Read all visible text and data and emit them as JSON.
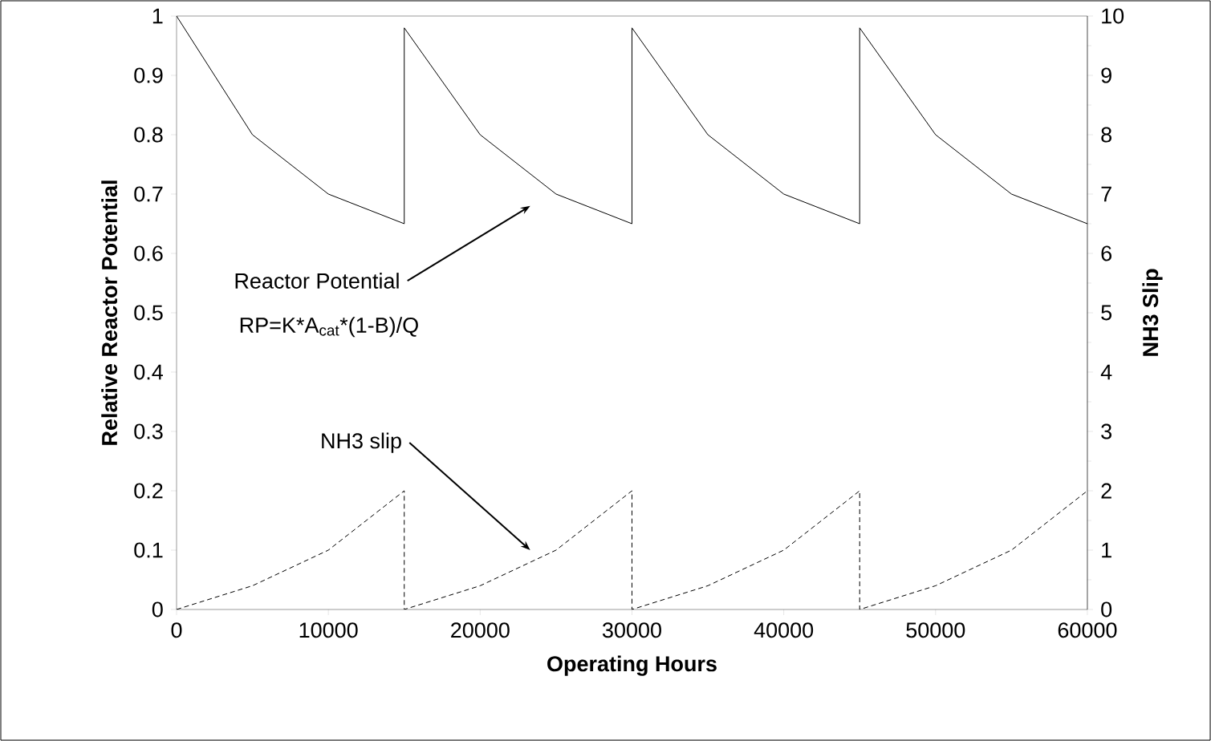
{
  "chart_data": {
    "type": "line",
    "xlabel": "Operating Hours",
    "ylabel": "Relative Reactor Potential",
    "y2label": "NH3 Slip",
    "x": [
      0,
      5000,
      10000,
      15000,
      15000,
      20000,
      25000,
      30000,
      30000,
      35000,
      40000,
      45000,
      45000,
      50000,
      55000,
      60000
    ],
    "series": [
      {
        "color": "#000000",
        "line_style": "solid",
        "values": [
          1,
          0.8,
          0.7,
          0.65,
          0.98,
          0.8,
          0.7,
          0.65,
          0.98,
          0.8,
          0.7,
          0.65,
          0.98,
          0.8,
          0.7,
          0.65
        ]
      },
      {
        "color": "#000000",
        "line_style": "dashed",
        "axis": "y2",
        "values": [
          0,
          0.4,
          1,
          2,
          0,
          0.4,
          1,
          2,
          0,
          0.4,
          1,
          2,
          0,
          0.4,
          1,
          2
        ]
      }
    ],
    "xlim": [
      0,
      60000
    ],
    "xticks": [
      0,
      10000,
      20000,
      30000,
      40000,
      50000,
      60000
    ],
    "ylim": [
      0,
      1
    ],
    "yticks": [
      0,
      0.1,
      0.2,
      0.3,
      0.4,
      0.5,
      0.6,
      0.7,
      0.8,
      0.9,
      1
    ],
    "y2lim": [
      0,
      10
    ],
    "y2ticks": [
      0,
      1,
      2,
      3,
      4,
      5,
      6,
      7,
      8,
      9,
      10
    ],
    "annotations": [
      "Reactor Potential",
      "RP=K*A$_{cat}$*(1-B)/Q",
      "NH3 slip"
    ],
    "grid": false,
    "marker": "none"
  }
}
